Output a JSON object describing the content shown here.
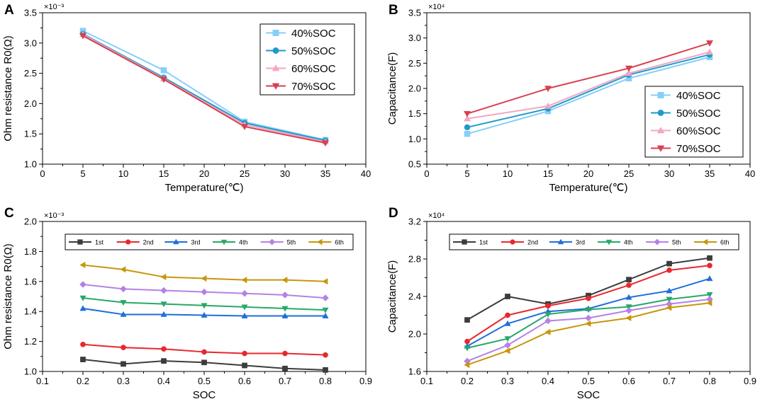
{
  "chart_data": [
    {
      "panel": "A",
      "type": "line",
      "xlabel": "Temperature(℃)",
      "ylabel": "Ohm resistance R0(Ω)",
      "x_multiplier": "",
      "y_multiplier": "×10⁻³",
      "xlim": [
        0,
        40
      ],
      "ylim": [
        1.0,
        3.5
      ],
      "xticks": [
        "0",
        "5",
        "10",
        "15",
        "20",
        "25",
        "30",
        "35",
        "40"
      ],
      "yticks": [
        "1.0",
        "1.5",
        "2.0",
        "2.5",
        "3.0",
        "3.5"
      ],
      "legend_position": "top-right",
      "legend_style": "large",
      "x": [
        5,
        15,
        25,
        35
      ],
      "series": [
        {
          "name": "40%SOC",
          "color": "#87cefa",
          "marker": "square",
          "values": [
            3.2,
            2.55,
            1.7,
            1.4
          ]
        },
        {
          "name": "50%SOC",
          "color": "#1f9ac9",
          "marker": "circle",
          "values": [
            3.15,
            2.43,
            1.68,
            1.39
          ]
        },
        {
          "name": "60%SOC",
          "color": "#f2a7c1",
          "marker": "triangle-up",
          "values": [
            3.14,
            2.41,
            1.65,
            1.37
          ]
        },
        {
          "name": "70%SOC",
          "color": "#d7404f",
          "marker": "triangle-down",
          "values": [
            3.12,
            2.4,
            1.62,
            1.35
          ]
        }
      ]
    },
    {
      "panel": "B",
      "type": "line",
      "xlabel": "Temperature(℃)",
      "ylabel": "Capacitance(F)",
      "x_multiplier": "",
      "y_multiplier": "×10⁴",
      "xlim": [
        0,
        40
      ],
      "ylim": [
        0.5,
        3.5
      ],
      "xticks": [
        "0",
        "5",
        "10",
        "15",
        "20",
        "25",
        "30",
        "35",
        "40"
      ],
      "yticks": [
        "0.5",
        "1.0",
        "1.5",
        "2.0",
        "2.5",
        "3.0",
        "3.5"
      ],
      "legend_position": "bottom-right",
      "legend_style": "large",
      "x": [
        5,
        15,
        25,
        35
      ],
      "series": [
        {
          "name": "40%SOC",
          "color": "#87cefa",
          "marker": "square",
          "values": [
            1.1,
            1.55,
            2.2,
            2.62
          ]
        },
        {
          "name": "50%SOC",
          "color": "#1f9ac9",
          "marker": "circle",
          "values": [
            1.23,
            1.6,
            2.27,
            2.67
          ]
        },
        {
          "name": "60%SOC",
          "color": "#f2a7c1",
          "marker": "triangle-up",
          "values": [
            1.4,
            1.65,
            2.3,
            2.72
          ]
        },
        {
          "name": "70%SOC",
          "color": "#d7404f",
          "marker": "triangle-down",
          "values": [
            1.5,
            2.0,
            2.4,
            2.9
          ]
        }
      ]
    },
    {
      "panel": "C",
      "type": "line",
      "xlabel": "SOC",
      "ylabel": "Ohm resistance R0(Ω)",
      "x_multiplier": "",
      "y_multiplier": "×10⁻³",
      "xlim": [
        0.1,
        0.9
      ],
      "ylim": [
        1.0,
        2.0
      ],
      "xticks": [
        "0.1",
        "0.2",
        "0.3",
        "0.4",
        "0.5",
        "0.6",
        "0.7",
        "0.8",
        "0.9"
      ],
      "yticks": [
        "1.0",
        "1.2",
        "1.4",
        "1.6",
        "1.8",
        "2.0"
      ],
      "legend_position": "top",
      "legend_style": "small",
      "x": [
        0.2,
        0.3,
        0.4,
        0.5,
        0.6,
        0.7,
        0.8
      ],
      "series": [
        {
          "name": "1st",
          "color": "#3c3c3c",
          "marker": "square",
          "values": [
            1.08,
            1.05,
            1.07,
            1.06,
            1.04,
            1.02,
            1.01
          ]
        },
        {
          "name": "2nd",
          "color": "#e8282e",
          "marker": "circle",
          "values": [
            1.18,
            1.16,
            1.15,
            1.13,
            1.12,
            1.12,
            1.11
          ]
        },
        {
          "name": "3rd",
          "color": "#1e6fd9",
          "marker": "triangle-up",
          "values": [
            1.42,
            1.38,
            1.38,
            1.375,
            1.37,
            1.37,
            1.37
          ]
        },
        {
          "name": "4th",
          "color": "#28a868",
          "marker": "triangle-down",
          "values": [
            1.49,
            1.46,
            1.45,
            1.44,
            1.43,
            1.42,
            1.41
          ]
        },
        {
          "name": "5th",
          "color": "#b482e6",
          "marker": "diamond",
          "values": [
            1.58,
            1.55,
            1.54,
            1.53,
            1.52,
            1.51,
            1.49
          ]
        },
        {
          "name": "6th",
          "color": "#c8960a",
          "marker": "triangle-left",
          "values": [
            1.71,
            1.68,
            1.63,
            1.62,
            1.61,
            1.61,
            1.6
          ]
        }
      ]
    },
    {
      "panel": "D",
      "type": "line",
      "xlabel": "SOC",
      "ylabel": "Capacitance(F)",
      "x_multiplier": "",
      "y_multiplier": "×10⁴",
      "xlim": [
        0.1,
        0.9
      ],
      "ylim": [
        1.6,
        3.2
      ],
      "xticks": [
        "0.1",
        "0.2",
        "0.3",
        "0.4",
        "0.5",
        "0.6",
        "0.7",
        "0.8",
        "0.9"
      ],
      "yticks": [
        "1.6",
        "2.0",
        "2.4",
        "2.8",
        "3.2"
      ],
      "legend_position": "top",
      "legend_style": "small",
      "x": [
        0.2,
        0.3,
        0.4,
        0.5,
        0.6,
        0.7,
        0.8
      ],
      "series": [
        {
          "name": "1st",
          "color": "#3c3c3c",
          "marker": "square",
          "values": [
            2.15,
            2.4,
            2.32,
            2.41,
            2.58,
            2.75,
            2.81
          ]
        },
        {
          "name": "2nd",
          "color": "#e8282e",
          "marker": "circle",
          "values": [
            1.92,
            2.2,
            2.3,
            2.38,
            2.52,
            2.68,
            2.73
          ]
        },
        {
          "name": "3rd",
          "color": "#1e6fd9",
          "marker": "triangle-up",
          "values": [
            1.87,
            2.11,
            2.24,
            2.27,
            2.39,
            2.46,
            2.59
          ]
        },
        {
          "name": "4th",
          "color": "#28a868",
          "marker": "triangle-down",
          "values": [
            1.85,
            1.95,
            2.21,
            2.26,
            2.29,
            2.37,
            2.42
          ]
        },
        {
          "name": "5th",
          "color": "#b482e6",
          "marker": "diamond",
          "values": [
            1.71,
            1.88,
            2.14,
            2.17,
            2.25,
            2.32,
            2.37
          ]
        },
        {
          "name": "6th",
          "color": "#c8960a",
          "marker": "triangle-left",
          "values": [
            1.67,
            1.82,
            2.02,
            2.11,
            2.17,
            2.28,
            2.33
          ]
        }
      ]
    }
  ]
}
